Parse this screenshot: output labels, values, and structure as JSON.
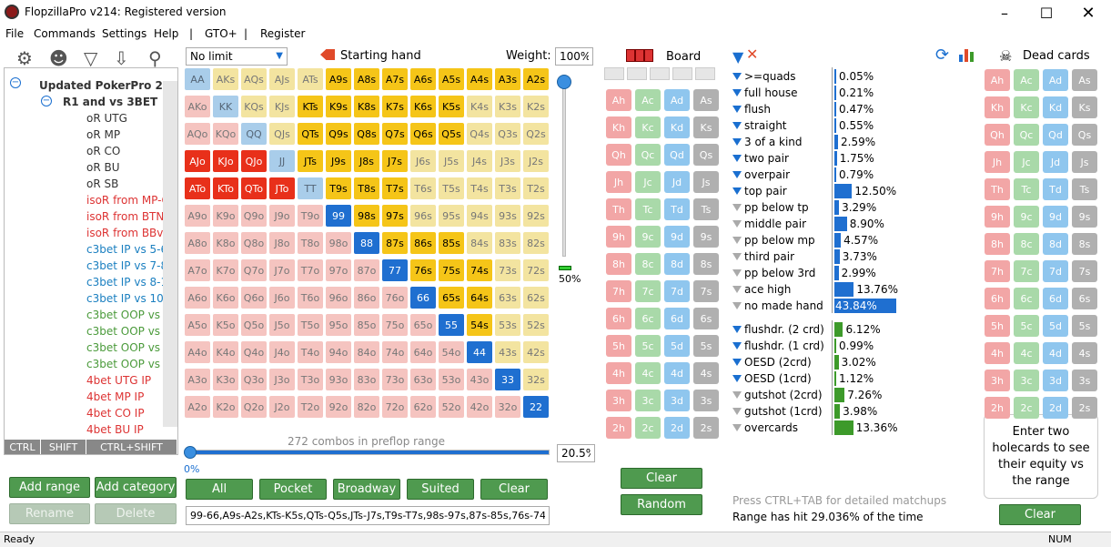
{
  "window": {
    "title": "FlopzillaPro v214: Registered version"
  },
  "menu": [
    "File",
    "Commands",
    "Settings",
    "Help",
    "|",
    "GTO+",
    "|",
    "Register"
  ],
  "tree": {
    "root": "Updated PokerPro 2021 c",
    "sub": "R1 and vs 3BET",
    "items": [
      {
        "label": "oR UTG",
        "color": "#333"
      },
      {
        "label": "oR MP",
        "color": "#333"
      },
      {
        "label": "oR CO",
        "color": "#333"
      },
      {
        "label": "oR BU",
        "color": "#333"
      },
      {
        "label": "oR SB",
        "color": "#333"
      },
      {
        "label": "isoR from MP-CO",
        "color": "#d33"
      },
      {
        "label": "isoR from BTN-BB",
        "color": "#d33"
      },
      {
        "label": "isoR from BBvsSB",
        "color": "#d33"
      },
      {
        "label": "c3bet IP vs 5-6%",
        "color": "#1a7fc0"
      },
      {
        "label": "c3bet IP vs 7-8%",
        "color": "#1a7fc0"
      },
      {
        "label": "c3bet IP vs 8-10%",
        "color": "#1a7fc0"
      },
      {
        "label": "c3bet IP vs 10-15",
        "color": "#1a7fc0"
      },
      {
        "label": "c3bet OOP vs 5-6",
        "color": "#4a9a3a"
      },
      {
        "label": "c3bet OOP vs 7-8",
        "color": "#4a9a3a"
      },
      {
        "label": "c3bet OOP vs 8-1",
        "color": "#4a9a3a"
      },
      {
        "label": "c3bet OOP vs 12-",
        "color": "#4a9a3a"
      },
      {
        "label": "4bet UTG IP",
        "color": "#d33"
      },
      {
        "label": "4bet MP IP",
        "color": "#d33"
      },
      {
        "label": "4bet CO IP",
        "color": "#d33"
      },
      {
        "label": "4bet BU IP",
        "color": "#d33"
      },
      {
        "label": "4bet UTG OOP",
        "color": "#d64fd6"
      }
    ],
    "modifiers": [
      "CTRL",
      "SHIFT",
      "CTRL+SHIFT"
    ]
  },
  "left_buttons": {
    "add_range": "Add range",
    "add_category": "Add category",
    "rename": "Rename",
    "delete": "Delete"
  },
  "range": {
    "limit_select": "No limit",
    "starting_hand_label": "Starting hand",
    "weight_label": "Weight:",
    "weight_value": "100%",
    "slider_value": "50%",
    "combos_text": "272 combos in preflop range",
    "percent_value": "20.5%",
    "percent_left": "0%",
    "range_text": "99-66,A9s-A2s,KTs-K5s,QTs-Q5s,JTs-J7s,T9s-T7s,98s-97s,87s-85s,76s-74s,65s-64s,54s,44-22,AJo-ATo,KJo-KTo,QJo-QTo,JTo",
    "buttons": {
      "all": "All",
      "pocket": "Pocket",
      "broadway": "Broadway",
      "suited": "Suited",
      "clear": "Clear"
    }
  },
  "grid": {
    "rows": [
      [
        "AA",
        "AKs",
        "AQs",
        "AJs",
        "ATs",
        "A9s",
        "A8s",
        "A7s",
        "A6s",
        "A5s",
        "A4s",
        "A3s",
        "A2s"
      ],
      [
        "AKo",
        "KK",
        "KQs",
        "KJs",
        "KTs",
        "K9s",
        "K8s",
        "K7s",
        "K6s",
        "K5s",
        "K4s",
        "K3s",
        "K2s"
      ],
      [
        "AQo",
        "KQo",
        "QQ",
        "QJs",
        "QTs",
        "Q9s",
        "Q8s",
        "Q7s",
        "Q6s",
        "Q5s",
        "Q4s",
        "Q3s",
        "Q2s"
      ],
      [
        "AJo",
        "KJo",
        "QJo",
        "JJ",
        "JTs",
        "J9s",
        "J8s",
        "J7s",
        "J6s",
        "J5s",
        "J4s",
        "J3s",
        "J2s"
      ],
      [
        "ATo",
        "KTo",
        "QTo",
        "JTo",
        "TT",
        "T9s",
        "T8s",
        "T7s",
        "T6s",
        "T5s",
        "T4s",
        "T3s",
        "T2s"
      ],
      [
        "A9o",
        "K9o",
        "Q9o",
        "J9o",
        "T9o",
        "99",
        "98s",
        "97s",
        "96s",
        "95s",
        "94s",
        "93s",
        "92s"
      ],
      [
        "A8o",
        "K8o",
        "Q8o",
        "J8o",
        "T8o",
        "98o",
        "88",
        "87s",
        "86s",
        "85s",
        "84s",
        "83s",
        "82s"
      ],
      [
        "A7o",
        "K7o",
        "Q7o",
        "J7o",
        "T7o",
        "97o",
        "87o",
        "77",
        "76s",
        "75s",
        "74s",
        "73s",
        "72s"
      ],
      [
        "A6o",
        "K6o",
        "Q6o",
        "J6o",
        "T6o",
        "96o",
        "86o",
        "76o",
        "66",
        "65s",
        "64s",
        "63s",
        "62s"
      ],
      [
        "A5o",
        "K5o",
        "Q5o",
        "J5o",
        "T5o",
        "95o",
        "85o",
        "75o",
        "65o",
        "55",
        "54s",
        "53s",
        "52s"
      ],
      [
        "A4o",
        "K4o",
        "Q4o",
        "J4o",
        "T4o",
        "94o",
        "84o",
        "74o",
        "64o",
        "54o",
        "44",
        "43s",
        "42s"
      ],
      [
        "A3o",
        "K3o",
        "Q3o",
        "J3o",
        "T3o",
        "93o",
        "83o",
        "73o",
        "63o",
        "53o",
        "43o",
        "33",
        "32s"
      ],
      [
        "A2o",
        "K2o",
        "Q2o",
        "J2o",
        "T2o",
        "92o",
        "82o",
        "72o",
        "62o",
        "52o",
        "42o",
        "32o",
        "22"
      ]
    ],
    "selected": [
      "99",
      "88",
      "77",
      "66",
      "55",
      "44",
      "33",
      "22",
      "A9s",
      "A8s",
      "A7s",
      "A6s",
      "A5s",
      "A4s",
      "A3s",
      "A2s",
      "KTs",
      "K9s",
      "K8s",
      "K7s",
      "K6s",
      "K5s",
      "QTs",
      "Q9s",
      "Q8s",
      "Q7s",
      "Q6s",
      "Q5s",
      "JTs",
      "J9s",
      "J8s",
      "J7s",
      "T9s",
      "T8s",
      "T7s",
      "98s",
      "97s",
      "87s",
      "86s",
      "85s",
      "76s",
      "75s",
      "74s",
      "65s",
      "64s",
      "54s",
      "AJo",
      "KJo",
      "QJo",
      "ATo",
      "KTo",
      "QTo",
      "JTo"
    ],
    "with_bar": [
      "55",
      "44",
      "33",
      "22",
      "54s"
    ],
    "colors": {
      "pair": "#a9cdea",
      "suited": "#f3e4a0",
      "offsuit": "#f5c4c0",
      "sel_pair": "#1f6fd0",
      "sel_suited": "#f5c518",
      "sel_offsuit": "#e8301a"
    }
  },
  "board": {
    "title": "Board",
    "ranks": [
      "A",
      "K",
      "Q",
      "J",
      "T",
      "9",
      "8",
      "7",
      "6",
      "5",
      "4",
      "3",
      "2"
    ],
    "suits": [
      "h",
      "c",
      "d",
      "s"
    ],
    "suit_colors": [
      "#f2a6a6",
      "#a9d9a9",
      "#8fc6ee",
      "#b0b0b0"
    ],
    "clear": "Clear",
    "random": "Random"
  },
  "dead": {
    "title": "Dead cards",
    "clear": "Clear",
    "hint": "Enter two holecards to see their equity vs the range"
  },
  "stats": {
    "made": [
      {
        "label": ">=quads",
        "pct": "0.05%",
        "v": 0.05,
        "active": true
      },
      {
        "label": "full house",
        "pct": "0.21%",
        "v": 0.21,
        "active": true
      },
      {
        "label": "flush",
        "pct": "0.47%",
        "v": 0.47,
        "active": true
      },
      {
        "label": "straight",
        "pct": "0.55%",
        "v": 0.55,
        "active": true
      },
      {
        "label": "3 of a kind",
        "pct": "2.59%",
        "v": 2.59,
        "active": true
      },
      {
        "label": "two pair",
        "pct": "1.75%",
        "v": 1.75,
        "active": true
      },
      {
        "label": "overpair",
        "pct": "0.79%",
        "v": 0.79,
        "active": true
      },
      {
        "label": "top pair",
        "pct": "12.50%",
        "v": 12.5,
        "active": true
      },
      {
        "label": "pp below tp",
        "pct": "3.29%",
        "v": 3.29,
        "active": false
      },
      {
        "label": "middle pair",
        "pct": "8.90%",
        "v": 8.9,
        "active": false
      },
      {
        "label": "pp below mp",
        "pct": "4.57%",
        "v": 4.57,
        "active": false
      },
      {
        "label": "third pair",
        "pct": "3.73%",
        "v": 3.73,
        "active": false
      },
      {
        "label": "pp below 3rd",
        "pct": "2.99%",
        "v": 2.99,
        "active": false
      },
      {
        "label": "ace high",
        "pct": "13.76%",
        "v": 13.76,
        "active": false
      },
      {
        "label": "no made hand",
        "pct": "43.84%",
        "v": 43.84,
        "active": false
      }
    ],
    "draws": [
      {
        "label": "flushdr. (2 crd)",
        "pct": "6.12%",
        "v": 6.12,
        "active": true
      },
      {
        "label": "flushdr. (1 crd)",
        "pct": "0.99%",
        "v": 0.99,
        "active": true
      },
      {
        "label": "OESD (2crd)",
        "pct": "3.02%",
        "v": 3.02,
        "active": true
      },
      {
        "label": "OESD (1crd)",
        "pct": "1.12%",
        "v": 1.12,
        "active": true
      },
      {
        "label": "gutshot (2crd)",
        "pct": "7.26%",
        "v": 7.26,
        "active": false
      },
      {
        "label": "gutshot (1crd)",
        "pct": "3.98%",
        "v": 3.98,
        "active": false
      },
      {
        "label": "overcards",
        "pct": "13.36%",
        "v": 13.36,
        "active": false
      }
    ],
    "hint": "Press CTRL+TAB for detailed matchups",
    "hit_text": "Range has hit 29.036% of the time",
    "made_color": "#1f6fd0",
    "draw_color": "#3d9a2a"
  },
  "status": {
    "left": "Ready",
    "right": "NUM"
  }
}
